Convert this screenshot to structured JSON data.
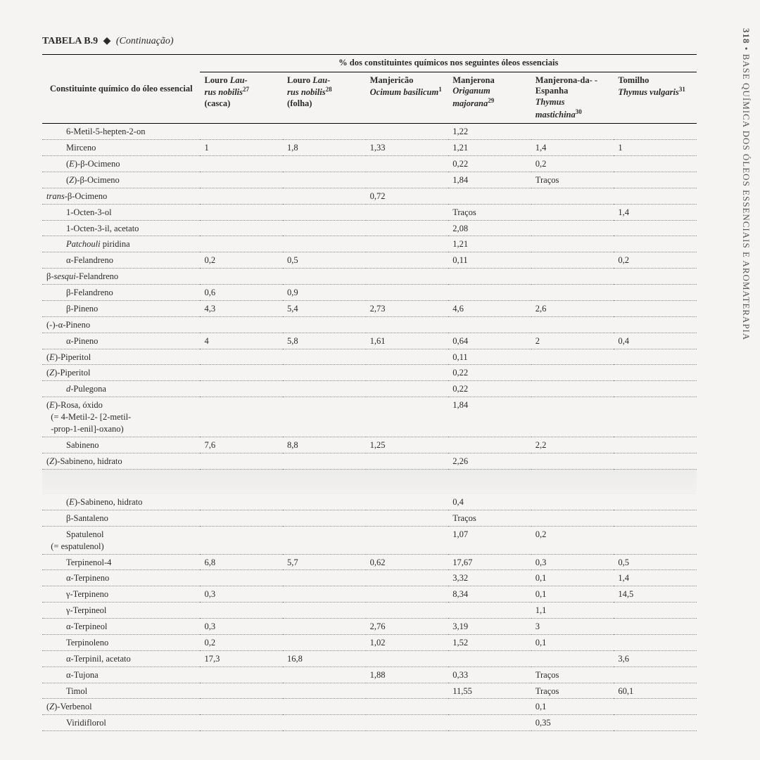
{
  "page_number": "318",
  "running_head": "BASE QUÍMICA DOS ÓLEOS ESSENCIAIS E AROMATERAPIA",
  "caption": {
    "label": "TABELA B.9",
    "diamond": "◆",
    "continuation": "(Continuação)"
  },
  "group_header": "% dos constituintes químicos nos seguintes óleos essenciais",
  "first_col_header": "Constituinte químico do óleo essencial",
  "columns": [
    {
      "l1": "Louro",
      "sci": "Laurus nobilis",
      "sup": "27",
      "l3": "(casca)"
    },
    {
      "l1": "Louro",
      "sci": "Laurus nobilis",
      "sup": "28",
      "l3": "(folha)"
    },
    {
      "l1": "Manjericão",
      "sci": "Ocimum basilicum",
      "sup": "1",
      "l3": ""
    },
    {
      "l1": "Manjerona",
      "sci": "Origanum majorana",
      "sup": "29",
      "l3": ""
    },
    {
      "l1": "Manjerona-da- -Espanha",
      "sci": "Thymus mastichina",
      "sup": "30",
      "l3": ""
    },
    {
      "l1": "Tomilho",
      "sci": "Thymus vulgaris",
      "sup": "31",
      "l3": ""
    }
  ],
  "rows": [
    {
      "label": "6-Metil-5-hepten-2-on",
      "indent": true,
      "v": [
        "",
        "",
        "",
        "1,22",
        "",
        ""
      ]
    },
    {
      "label": "Mirceno",
      "indent": true,
      "v": [
        "1",
        "1,8",
        "1,33",
        "1,21",
        "1,4",
        "1"
      ]
    },
    {
      "label_html": "(<span class='ital'>E</span>)-β-Ocimeno",
      "indent": true,
      "v": [
        "",
        "",
        "",
        "0,22",
        "0,2",
        ""
      ]
    },
    {
      "label_html": "(<span class='ital'>Z</span>)-β-Ocimeno",
      "indent": true,
      "v": [
        "",
        "",
        "",
        "1,84",
        "Traços",
        ""
      ]
    },
    {
      "label_html": "<span class='ital'>trans</span>-β-Ocimeno",
      "indent": false,
      "v": [
        "",
        "",
        "0,72",
        "",
        "",
        ""
      ]
    },
    {
      "label": "1-Octen-3-ol",
      "indent": true,
      "v": [
        "",
        "",
        "",
        "Traços",
        "",
        "1,4"
      ]
    },
    {
      "label": "1-Octen-3-il, acetato",
      "indent": true,
      "v": [
        "",
        "",
        "",
        "2,08",
        "",
        ""
      ]
    },
    {
      "label_html": "<span class='ital'>Patchouli</span> piridina",
      "indent": true,
      "v": [
        "",
        "",
        "",
        "1,21",
        "",
        ""
      ]
    },
    {
      "label": "α-Felandreno",
      "indent": true,
      "v": [
        "0,2",
        "0,5",
        "",
        "0,11",
        "",
        "0,2"
      ]
    },
    {
      "label_html": "β-<span class='ital'>sesqui</span>-Felandreno",
      "indent": false,
      "v": [
        "",
        "",
        "",
        "",
        "",
        ""
      ]
    },
    {
      "label": "β-Felandreno",
      "indent": true,
      "v": [
        "0,6",
        "0,9",
        "",
        "",
        "",
        ""
      ]
    },
    {
      "label": "β-Pineno",
      "indent": true,
      "v": [
        "4,3",
        "5,4",
        "2,73",
        "4,6",
        "2,6",
        ""
      ]
    },
    {
      "label": "(-)-α-Pineno",
      "indent": false,
      "v": [
        "",
        "",
        "",
        "",
        "",
        ""
      ]
    },
    {
      "label": "α-Pineno",
      "indent": true,
      "v": [
        "4",
        "5,8",
        "1,61",
        "0,64",
        "2",
        "0,4"
      ]
    },
    {
      "label_html": "(<span class='ital'>E</span>)-Piperitol",
      "indent": false,
      "v": [
        "",
        "",
        "",
        "0,11",
        "",
        ""
      ]
    },
    {
      "label_html": "(<span class='ital'>Z</span>)-Piperitol",
      "indent": false,
      "v": [
        "",
        "",
        "",
        "0,22",
        "",
        ""
      ]
    },
    {
      "label_html": "<span class='ital'>d</span>-Pulegona",
      "indent": true,
      "v": [
        "",
        "",
        "",
        "0,22",
        "",
        ""
      ]
    },
    {
      "label_html": "(<span class='ital'>E</span>)-Rosa, óxido<br>&nbsp;&nbsp;(= 4-Metil-2- [2-metil-<br>&nbsp;&nbsp;-prop-1-enil]-oxano)",
      "indent": false,
      "v": [
        "",
        "",
        "",
        "1,84",
        "",
        ""
      ]
    },
    {
      "label": "Sabineno",
      "indent": true,
      "v": [
        "7,6",
        "8,8",
        "1,25",
        "",
        "2,2",
        ""
      ]
    },
    {
      "label_html": "(<span class='ital'>Z</span>)-Sabineno, hidrato",
      "indent": false,
      "v": [
        "",
        "",
        "",
        "2,26",
        "",
        ""
      ]
    },
    {
      "gap": true
    },
    {
      "label_html": "(<span class='ital'>E</span>)-Sabineno, hidrato",
      "indent": true,
      "v": [
        "",
        "",
        "",
        "0,4",
        "",
        ""
      ]
    },
    {
      "label": "β-Santaleno",
      "indent": true,
      "v": [
        "",
        "",
        "",
        "Traços",
        "",
        ""
      ]
    },
    {
      "label_html": "Spatulenol<br>&nbsp;&nbsp;(= espatulenol)",
      "indent": true,
      "v": [
        "",
        "",
        "",
        "1,07",
        "0,2",
        ""
      ]
    },
    {
      "label": "Terpinenol-4",
      "indent": true,
      "v": [
        "6,8",
        "5,7",
        "0,62",
        "17,67",
        "0,3",
        "0,5"
      ]
    },
    {
      "label": "α-Terpineno",
      "indent": true,
      "v": [
        "",
        "",
        "",
        "3,32",
        "0,1",
        "1,4"
      ]
    },
    {
      "label": "γ-Terpineno",
      "indent": true,
      "v": [
        "0,3",
        "",
        "",
        "8,34",
        "0,1",
        "14,5"
      ]
    },
    {
      "label": "γ-Terpineol",
      "indent": true,
      "v": [
        "",
        "",
        "",
        "",
        "1,1",
        ""
      ]
    },
    {
      "label": "α-Terpineol",
      "indent": true,
      "v": [
        "0,3",
        "",
        "2,76",
        "3,19",
        "3",
        ""
      ]
    },
    {
      "label": "Terpinoleno",
      "indent": true,
      "v": [
        "0,2",
        "",
        "1,02",
        "1,52",
        "0,1",
        ""
      ]
    },
    {
      "label": "α-Terpinil, acetato",
      "indent": true,
      "v": [
        "17,3",
        "16,8",
        "",
        "",
        "",
        "3,6"
      ]
    },
    {
      "label": "α-Tujona",
      "indent": true,
      "v": [
        "",
        "",
        "1,88",
        "0,33",
        "Traços",
        ""
      ]
    },
    {
      "label": "Timol",
      "indent": true,
      "v": [
        "",
        "",
        "",
        "11,55",
        "Traços",
        "60,1"
      ]
    },
    {
      "label_html": "(<span class='ital'>Z</span>)-Verbenol",
      "indent": false,
      "v": [
        "",
        "",
        "",
        "",
        "0,1",
        ""
      ]
    },
    {
      "label": "Viridiflorol",
      "indent": true,
      "v": [
        "",
        "",
        "",
        "",
        "0,35",
        ""
      ]
    }
  ]
}
